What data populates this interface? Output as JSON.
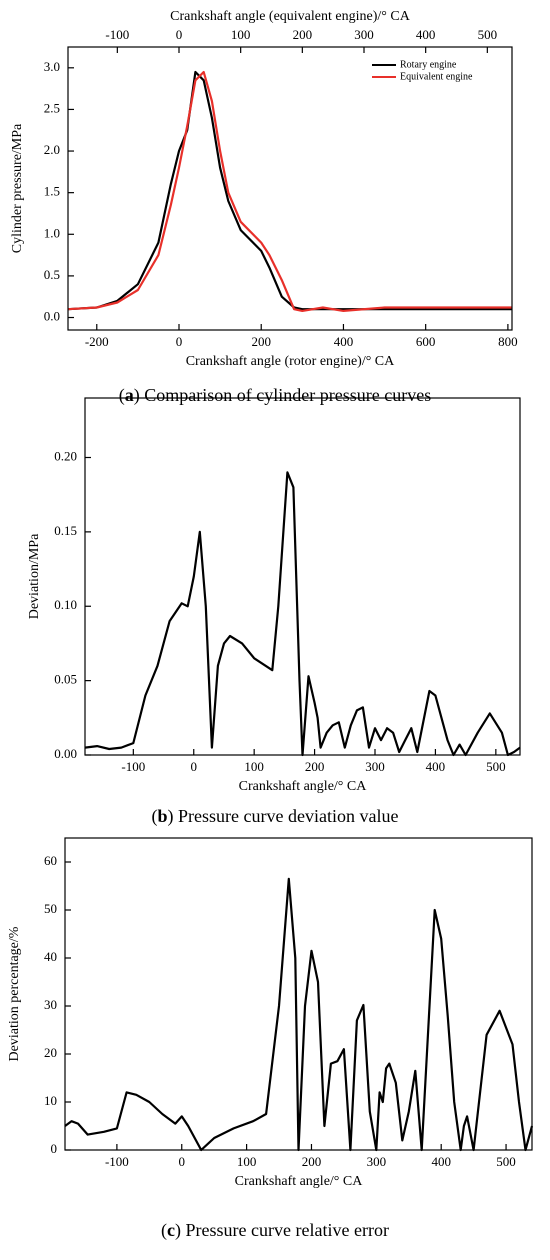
{
  "chart_data": [
    {
      "type": "line",
      "xlabel": "Crankshaft angle (rotor engine)/° CA",
      "x2label": "Crankshaft angle (equivalent engine)/° CA",
      "ylabel": "Cylinder pressure/MPa",
      "caption": {
        "label": "a",
        "text": "Comparison of cylinder pressure curves"
      },
      "xlim": [
        -270,
        810
      ],
      "xticks": [
        -200,
        0,
        200,
        400,
        600,
        800
      ],
      "x2lim": [
        -180,
        540
      ],
      "x2ticks": [
        -100,
        0,
        100,
        200,
        300,
        400,
        500
      ],
      "ylim": [
        -0.15,
        3.25
      ],
      "yticks": [
        {
          "value": 0,
          "label": "0.0"
        },
        {
          "value": 0.5,
          "label": "0.5"
        },
        {
          "value": 1,
          "label": "1.0"
        },
        {
          "value": 1.5,
          "label": "1.5"
        },
        {
          "value": 2,
          "label": "2.0"
        },
        {
          "value": 2.5,
          "label": "2.5"
        },
        {
          "value": 3,
          "label": "3.0"
        }
      ],
      "legend": "upper right",
      "x": [
        -270,
        -200,
        -150,
        -100,
        -50,
        -20,
        0,
        20,
        40,
        60,
        80,
        100,
        120,
        150,
        200,
        220,
        250,
        280,
        300,
        350,
        400,
        500,
        600,
        700,
        810
      ],
      "series": [
        {
          "name": "Rotary engine",
          "color": "#000000",
          "values": [
            0.1,
            0.12,
            0.2,
            0.4,
            0.9,
            1.6,
            2.0,
            2.25,
            2.95,
            2.85,
            2.4,
            1.8,
            1.4,
            1.05,
            0.8,
            0.6,
            0.25,
            0.12,
            0.1,
            0.1,
            0.1,
            0.1,
            0.1,
            0.1,
            0.1
          ]
        },
        {
          "name": "Equivalent engine",
          "color": "#e8302a",
          "values": [
            0.1,
            0.12,
            0.18,
            0.33,
            0.75,
            1.35,
            1.8,
            2.3,
            2.85,
            2.95,
            2.6,
            2.0,
            1.5,
            1.15,
            0.9,
            0.75,
            0.45,
            0.1,
            0.08,
            0.12,
            0.08,
            0.12,
            0.12,
            0.12,
            0.12
          ]
        }
      ]
    },
    {
      "type": "line",
      "xlabel": "Crankshaft angle/° CA",
      "ylabel": "Deviation/MPa",
      "caption": {
        "label": "b",
        "text": "Pressure curve deviation value"
      },
      "xlim": [
        -180,
        540
      ],
      "xticks": [
        -100,
        0,
        100,
        200,
        300,
        400,
        500
      ],
      "ylim": [
        0,
        0.24
      ],
      "yticks": [
        {
          "value": 0,
          "label": "0.00"
        },
        {
          "value": 0.05,
          "label": "0.05"
        },
        {
          "value": 0.1,
          "label": "0.10"
        },
        {
          "value": 0.15,
          "label": "0.15"
        },
        {
          "value": 0.2,
          "label": "0.20"
        }
      ],
      "x": [
        -180,
        -160,
        -140,
        -120,
        -100,
        -80,
        -60,
        -40,
        -20,
        -10,
        0,
        10,
        20,
        30,
        40,
        50,
        60,
        80,
        100,
        130,
        140,
        155,
        165,
        175,
        180,
        190,
        200,
        205,
        210,
        220,
        230,
        240,
        250,
        260,
        270,
        280,
        290,
        300,
        310,
        320,
        330,
        340,
        350,
        360,
        370,
        390,
        400,
        420,
        430,
        440,
        450,
        470,
        490,
        510,
        520,
        530,
        540
      ],
      "series": [
        {
          "color": "#000000",
          "values": [
            0.005,
            0.006,
            0.004,
            0.005,
            0.008,
            0.04,
            0.06,
            0.09,
            0.102,
            0.1,
            0.12,
            0.15,
            0.1,
            0.005,
            0.06,
            0.075,
            0.08,
            0.075,
            0.065,
            0.057,
            0.1,
            0.19,
            0.18,
            0.05,
            0,
            0.053,
            0.035,
            0.025,
            0.005,
            0.015,
            0.02,
            0.022,
            0.005,
            0.02,
            0.03,
            0.032,
            0.005,
            0.018,
            0.01,
            0.018,
            0.015,
            0.002,
            0.01,
            0.018,
            0.002,
            0.043,
            0.04,
            0.01,
            0,
            0.007,
            0,
            0.015,
            0.028,
            0.015,
            0,
            0.002,
            0.005
          ]
        }
      ]
    },
    {
      "type": "line",
      "xlabel": "Crankshaft angle/° CA",
      "ylabel": "Deviation percentage/%",
      "caption": {
        "label": "c",
        "text": "Pressure curve relative error"
      },
      "xlim": [
        -180,
        540
      ],
      "xticks": [
        -100,
        0,
        100,
        200,
        300,
        400,
        500
      ],
      "ylim": [
        0,
        65
      ],
      "yticks": [
        0,
        10,
        20,
        30,
        40,
        50,
        60
      ],
      "x": [
        -180,
        -170,
        -160,
        -145,
        -120,
        -100,
        -85,
        -70,
        -50,
        -30,
        -10,
        0,
        10,
        30,
        50,
        80,
        110,
        130,
        150,
        165,
        175,
        180,
        190,
        200,
        210,
        215,
        220,
        230,
        240,
        250,
        260,
        270,
        280,
        290,
        300,
        305,
        310,
        315,
        320,
        330,
        340,
        350,
        360,
        370,
        380,
        390,
        400,
        410,
        420,
        430,
        435,
        440,
        450,
        470,
        490,
        510,
        520,
        530,
        540
      ],
      "series": [
        {
          "color": "#000000",
          "values": [
            5,
            6,
            5.5,
            3.2,
            3.8,
            4.5,
            12,
            11.5,
            10,
            7.5,
            5.5,
            7,
            5,
            0,
            2.5,
            4.5,
            6,
            7.5,
            30,
            56.5,
            40,
            0,
            30,
            41.5,
            35,
            20,
            5,
            18,
            18.5,
            21,
            0,
            27,
            30.2,
            8,
            0,
            12,
            10,
            17,
            18,
            14,
            2,
            8,
            16.5,
            0,
            25,
            50,
            44,
            28,
            10,
            0,
            5,
            7,
            0,
            24,
            29,
            22,
            10,
            0,
            5
          ]
        }
      ]
    }
  ]
}
